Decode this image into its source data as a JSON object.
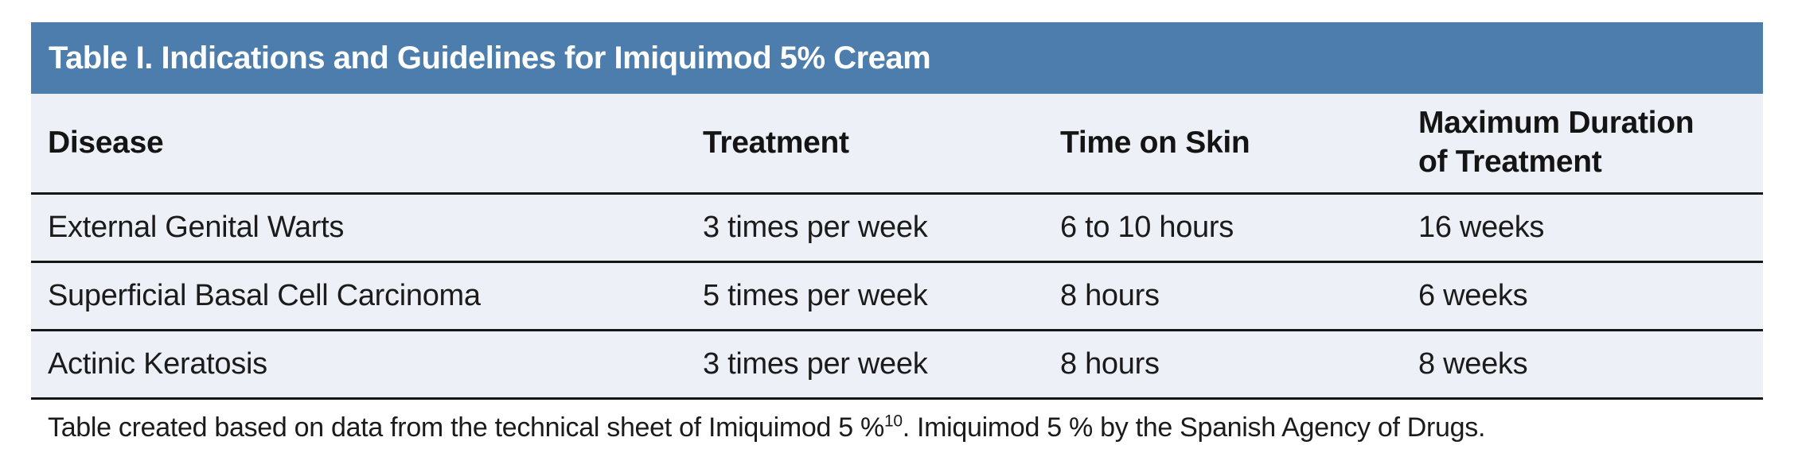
{
  "table": {
    "title": "Table I. Indications and Guidelines for Imiquimod 5% Cream",
    "columns": [
      "Disease",
      "Treatment",
      "Time on Skin",
      "Maximum Duration of Treatment"
    ],
    "rows": [
      [
        "External Genital Warts",
        "3 times per week",
        "6 to 10 hours",
        "16 weeks"
      ],
      [
        "Superficial Basal Cell Carcinoma",
        "5 times per week",
        "8 hours",
        "6 weeks"
      ],
      [
        "Actinic Keratosis",
        "3 times per week",
        "8 hours",
        "8 weeks"
      ]
    ]
  },
  "footnote": {
    "text_before_sup": "Table created based on data from the technical sheet of Imiquimod 5 %",
    "superscript": "10",
    "text_after_sup": ". Imiquimod 5 % by the Spanish Agency of Drugs."
  },
  "colors": {
    "title_bar_background": "#4c7dad",
    "title_text": "#ffffff",
    "table_background": "#edf0f7",
    "rule_line": "#161616",
    "body_text": "#1b1b1b",
    "page_background": "#ffffff"
  }
}
